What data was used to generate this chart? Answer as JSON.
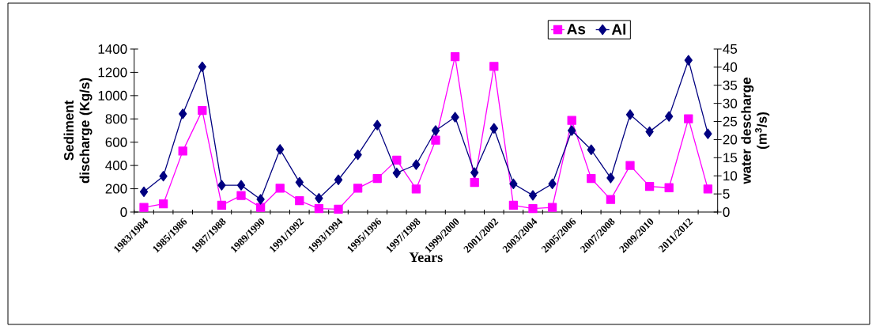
{
  "chart_data": {
    "type": "line",
    "categories": [
      "1983/1984",
      null,
      "1985/1986",
      null,
      "1987/1988",
      null,
      "1989/1990",
      null,
      "1991/1992",
      null,
      "1993/1994",
      null,
      "1995/1996",
      null,
      "1997/1998",
      null,
      "1999/2000",
      null,
      "2001/2002",
      null,
      "2003/2004",
      null,
      "2005/2006",
      null,
      "2007/2008",
      null,
      "2009/2010",
      null,
      "2011/2012",
      null
    ],
    "series": [
      {
        "name": "As",
        "color": "#ff00ff",
        "marker": "square",
        "values": [
          40,
          70,
          524,
          873,
          58,
          142,
          40,
          205,
          97,
          29,
          24,
          205,
          288,
          446,
          198,
          617,
          1334,
          254,
          1251,
          58,
          29,
          40,
          787,
          288,
          108,
          400,
          220,
          209,
          801,
          198
        ]
      },
      {
        "name": "Al",
        "color": "#000080",
        "marker": "diamond",
        "axis": "y2",
        "values": [
          5.6,
          9.9,
          27.1,
          40.1,
          7.4,
          7.4,
          3.5,
          17.3,
          8.2,
          3.8,
          8.9,
          15.8,
          24.0,
          10.8,
          13.1,
          22.5,
          26.2,
          10.9,
          23.1,
          7.8,
          4.6,
          7.8,
          22.5,
          17.2,
          9.4,
          26.9,
          22.2,
          26.4,
          41.9,
          21.6
        ]
      }
    ],
    "xlabel": "Years",
    "ylabel": "Sediment discharge (Kg/s)",
    "y2label": "water descharge (m$^{3}$/s)",
    "ylim": [
      0,
      1400
    ],
    "yticks": [
      0,
      200,
      400,
      600,
      800,
      1000,
      1200,
      1400
    ],
    "y2lim": [
      0,
      45
    ],
    "y2ticks": [
      0,
      5,
      10,
      15,
      20,
      25,
      30,
      35,
      40,
      45
    ],
    "legend": "top",
    "grid": false,
    "line_style": "solid"
  }
}
